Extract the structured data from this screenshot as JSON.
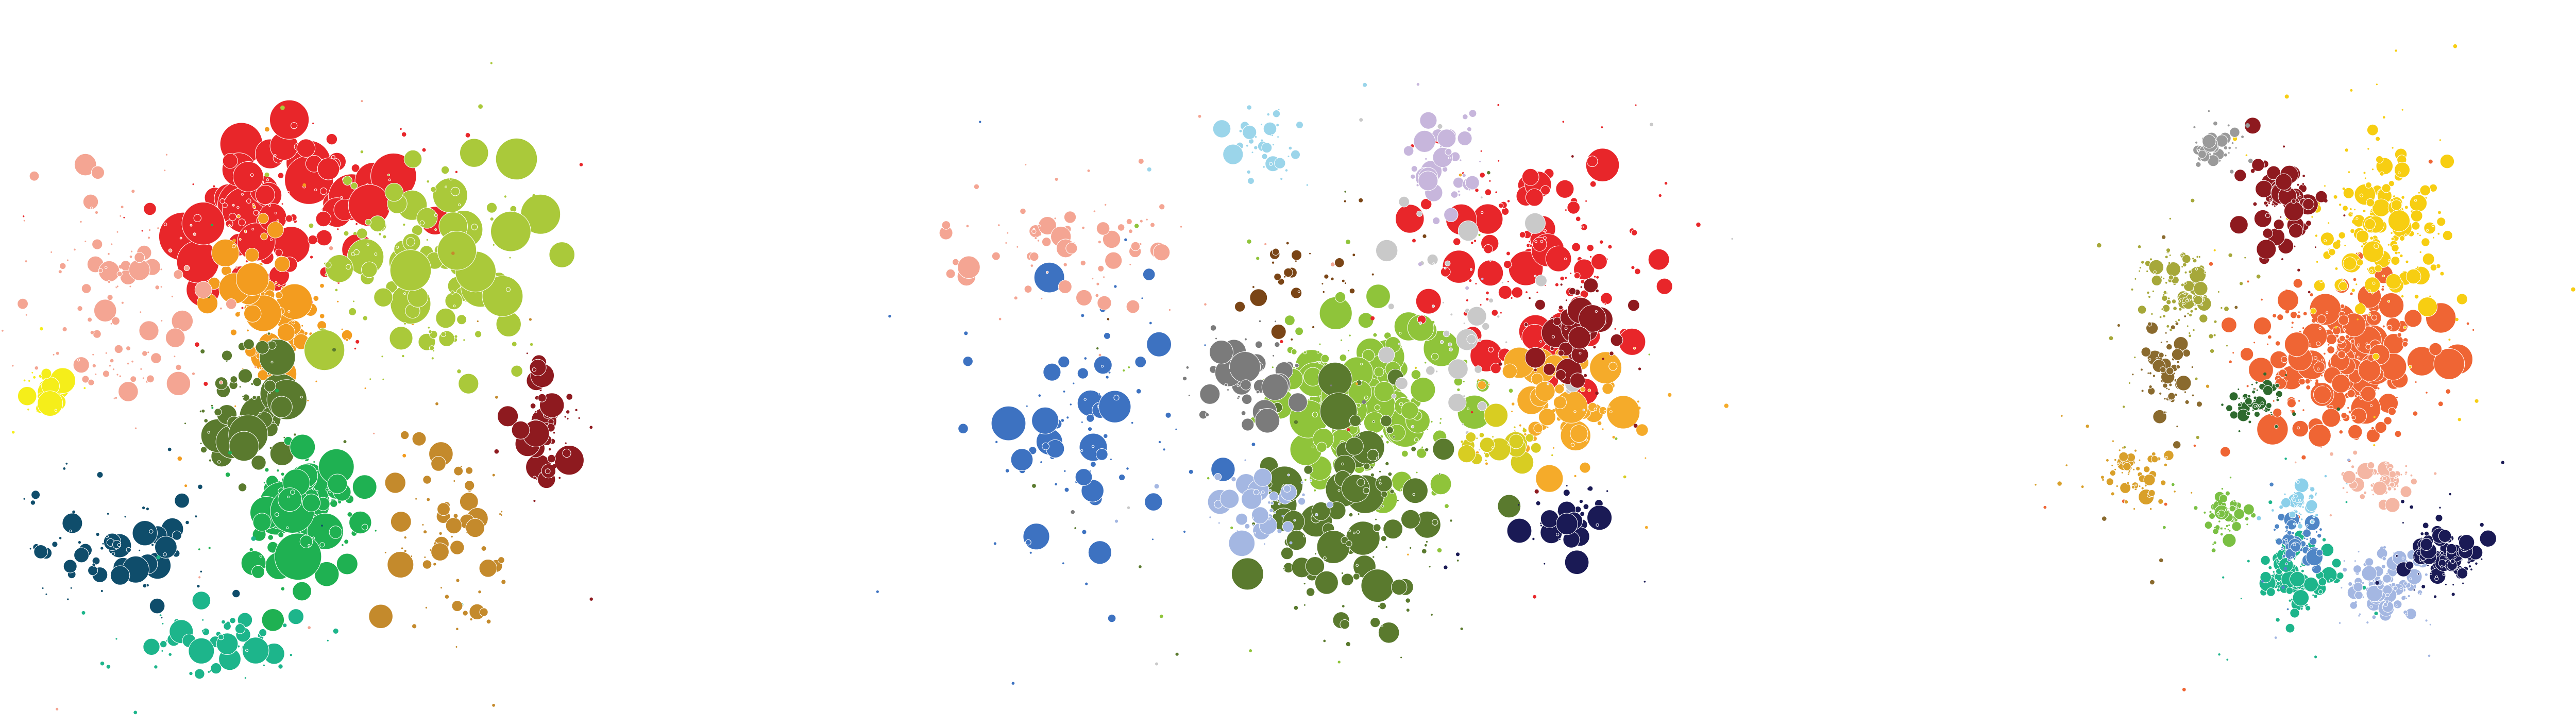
{
  "figure": {
    "panels": [
      {
        "id": "network-a",
        "clusters": [
          {
            "color": "#e8262a",
            "count": 140,
            "max_r": 1.0
          },
          {
            "color": "#f39c1f",
            "count": 90,
            "max_r": 0.7
          },
          {
            "color": "#aac93a",
            "count": 150,
            "max_r": 0.8
          },
          {
            "color": "#5a7a2e",
            "count": 70,
            "max_r": 0.8
          },
          {
            "color": "#1fb152",
            "count": 110,
            "max_r": 1.0
          },
          {
            "color": "#f4a593",
            "count": 120,
            "max_r": 0.5
          },
          {
            "color": "#0f4d6b",
            "count": 70,
            "max_r": 0.5
          },
          {
            "color": "#1db58b",
            "count": 60,
            "max_r": 0.5
          },
          {
            "color": "#8e1a1f",
            "count": 50,
            "max_r": 0.6
          },
          {
            "color": "#c48a2c",
            "count": 70,
            "max_r": 0.5
          },
          {
            "color": "#f5ee1a",
            "count": 30,
            "max_r": 0.55
          }
        ]
      },
      {
        "id": "network-b",
        "clusters": [
          {
            "color": "#8fc43a",
            "count": 220,
            "max_r": 0.9
          },
          {
            "color": "#5a7a2e",
            "count": 140,
            "max_r": 0.9
          },
          {
            "color": "#e8262a",
            "count": 150,
            "max_r": 0.8
          },
          {
            "color": "#f5ab2a",
            "count": 90,
            "max_r": 0.9
          },
          {
            "color": "#3d72c1",
            "count": 90,
            "max_r": 0.8
          },
          {
            "color": "#a4b7e2",
            "count": 50,
            "max_r": 0.6
          },
          {
            "color": "#7b7b7b",
            "count": 50,
            "max_r": 0.7
          },
          {
            "color": "#c9c9c9",
            "count": 60,
            "max_r": 0.5
          },
          {
            "color": "#f4a593",
            "count": 80,
            "max_r": 0.5
          },
          {
            "color": "#9bd5ea",
            "count": 40,
            "max_r": 0.45
          },
          {
            "color": "#c7b6dc",
            "count": 40,
            "max_r": 0.5
          },
          {
            "color": "#1a1a55",
            "count": 40,
            "max_r": 0.6
          },
          {
            "color": "#8e1a1f",
            "count": 60,
            "max_r": 0.7
          },
          {
            "color": "#d8cd22",
            "count": 30,
            "max_r": 0.55
          },
          {
            "color": "#7a4516",
            "count": 30,
            "max_r": 0.45
          }
        ]
      },
      {
        "id": "network-c",
        "clusters": [
          {
            "color": "#ef6534",
            "count": 260,
            "max_r": 0.9
          },
          {
            "color": "#f7ce12",
            "count": 200,
            "max_r": 0.6
          },
          {
            "color": "#8e1a1f",
            "count": 70,
            "max_r": 0.6
          },
          {
            "color": "#a6a83a",
            "count": 120,
            "max_r": 0.5
          },
          {
            "color": "#8a6a2e",
            "count": 70,
            "max_r": 0.45
          },
          {
            "color": "#d9a02a",
            "count": 70,
            "max_r": 0.45
          },
          {
            "color": "#1db58b",
            "count": 110,
            "max_r": 0.45
          },
          {
            "color": "#a4b7e2",
            "count": 110,
            "max_r": 0.45
          },
          {
            "color": "#1a1a55",
            "count": 100,
            "max_r": 0.5
          },
          {
            "color": "#4f86c6",
            "count": 60,
            "max_r": 0.45
          },
          {
            "color": "#8cd0ea",
            "count": 40,
            "max_r": 0.4
          },
          {
            "color": "#f4b6a3",
            "count": 60,
            "max_r": 0.45
          },
          {
            "color": "#2e6a2e",
            "count": 50,
            "max_r": 0.4
          },
          {
            "color": "#7ac043",
            "count": 60,
            "max_r": 0.4
          },
          {
            "color": "#9a9a9a",
            "count": 40,
            "max_r": 0.45
          }
        ]
      }
    ]
  }
}
